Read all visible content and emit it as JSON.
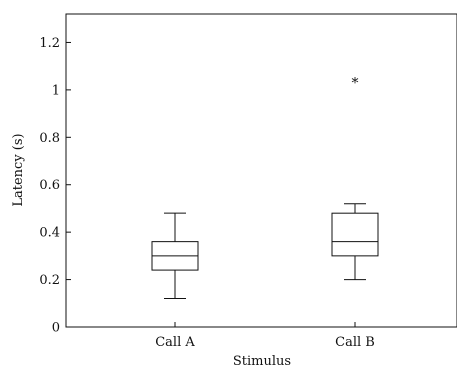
{
  "chart_data": {
    "type": "box",
    "title": "",
    "xlabel": "Stimulus",
    "ylabel": "Latency (s)",
    "ylim": [
      0,
      1.32
    ],
    "yticks": [
      0,
      0.2,
      0.4,
      0.6,
      0.8,
      1,
      1.2
    ],
    "ytick_labels": [
      "0",
      "0.2",
      "0.4",
      "0.6",
      "0.8",
      "1",
      "1.2"
    ],
    "categories": [
      "Call A",
      "Call B"
    ],
    "boxes": [
      {
        "category": "Call A",
        "min": 0.12,
        "q1": 0.24,
        "median": 0.3,
        "q3": 0.36,
        "max": 0.48,
        "outliers": []
      },
      {
        "category": "Call B",
        "min": 0.2,
        "q1": 0.3,
        "median": 0.36,
        "q3": 0.48,
        "max": 0.52,
        "outliers": [
          1.04
        ]
      }
    ],
    "outlier_marker": "*",
    "grid": false,
    "legend": "none"
  }
}
